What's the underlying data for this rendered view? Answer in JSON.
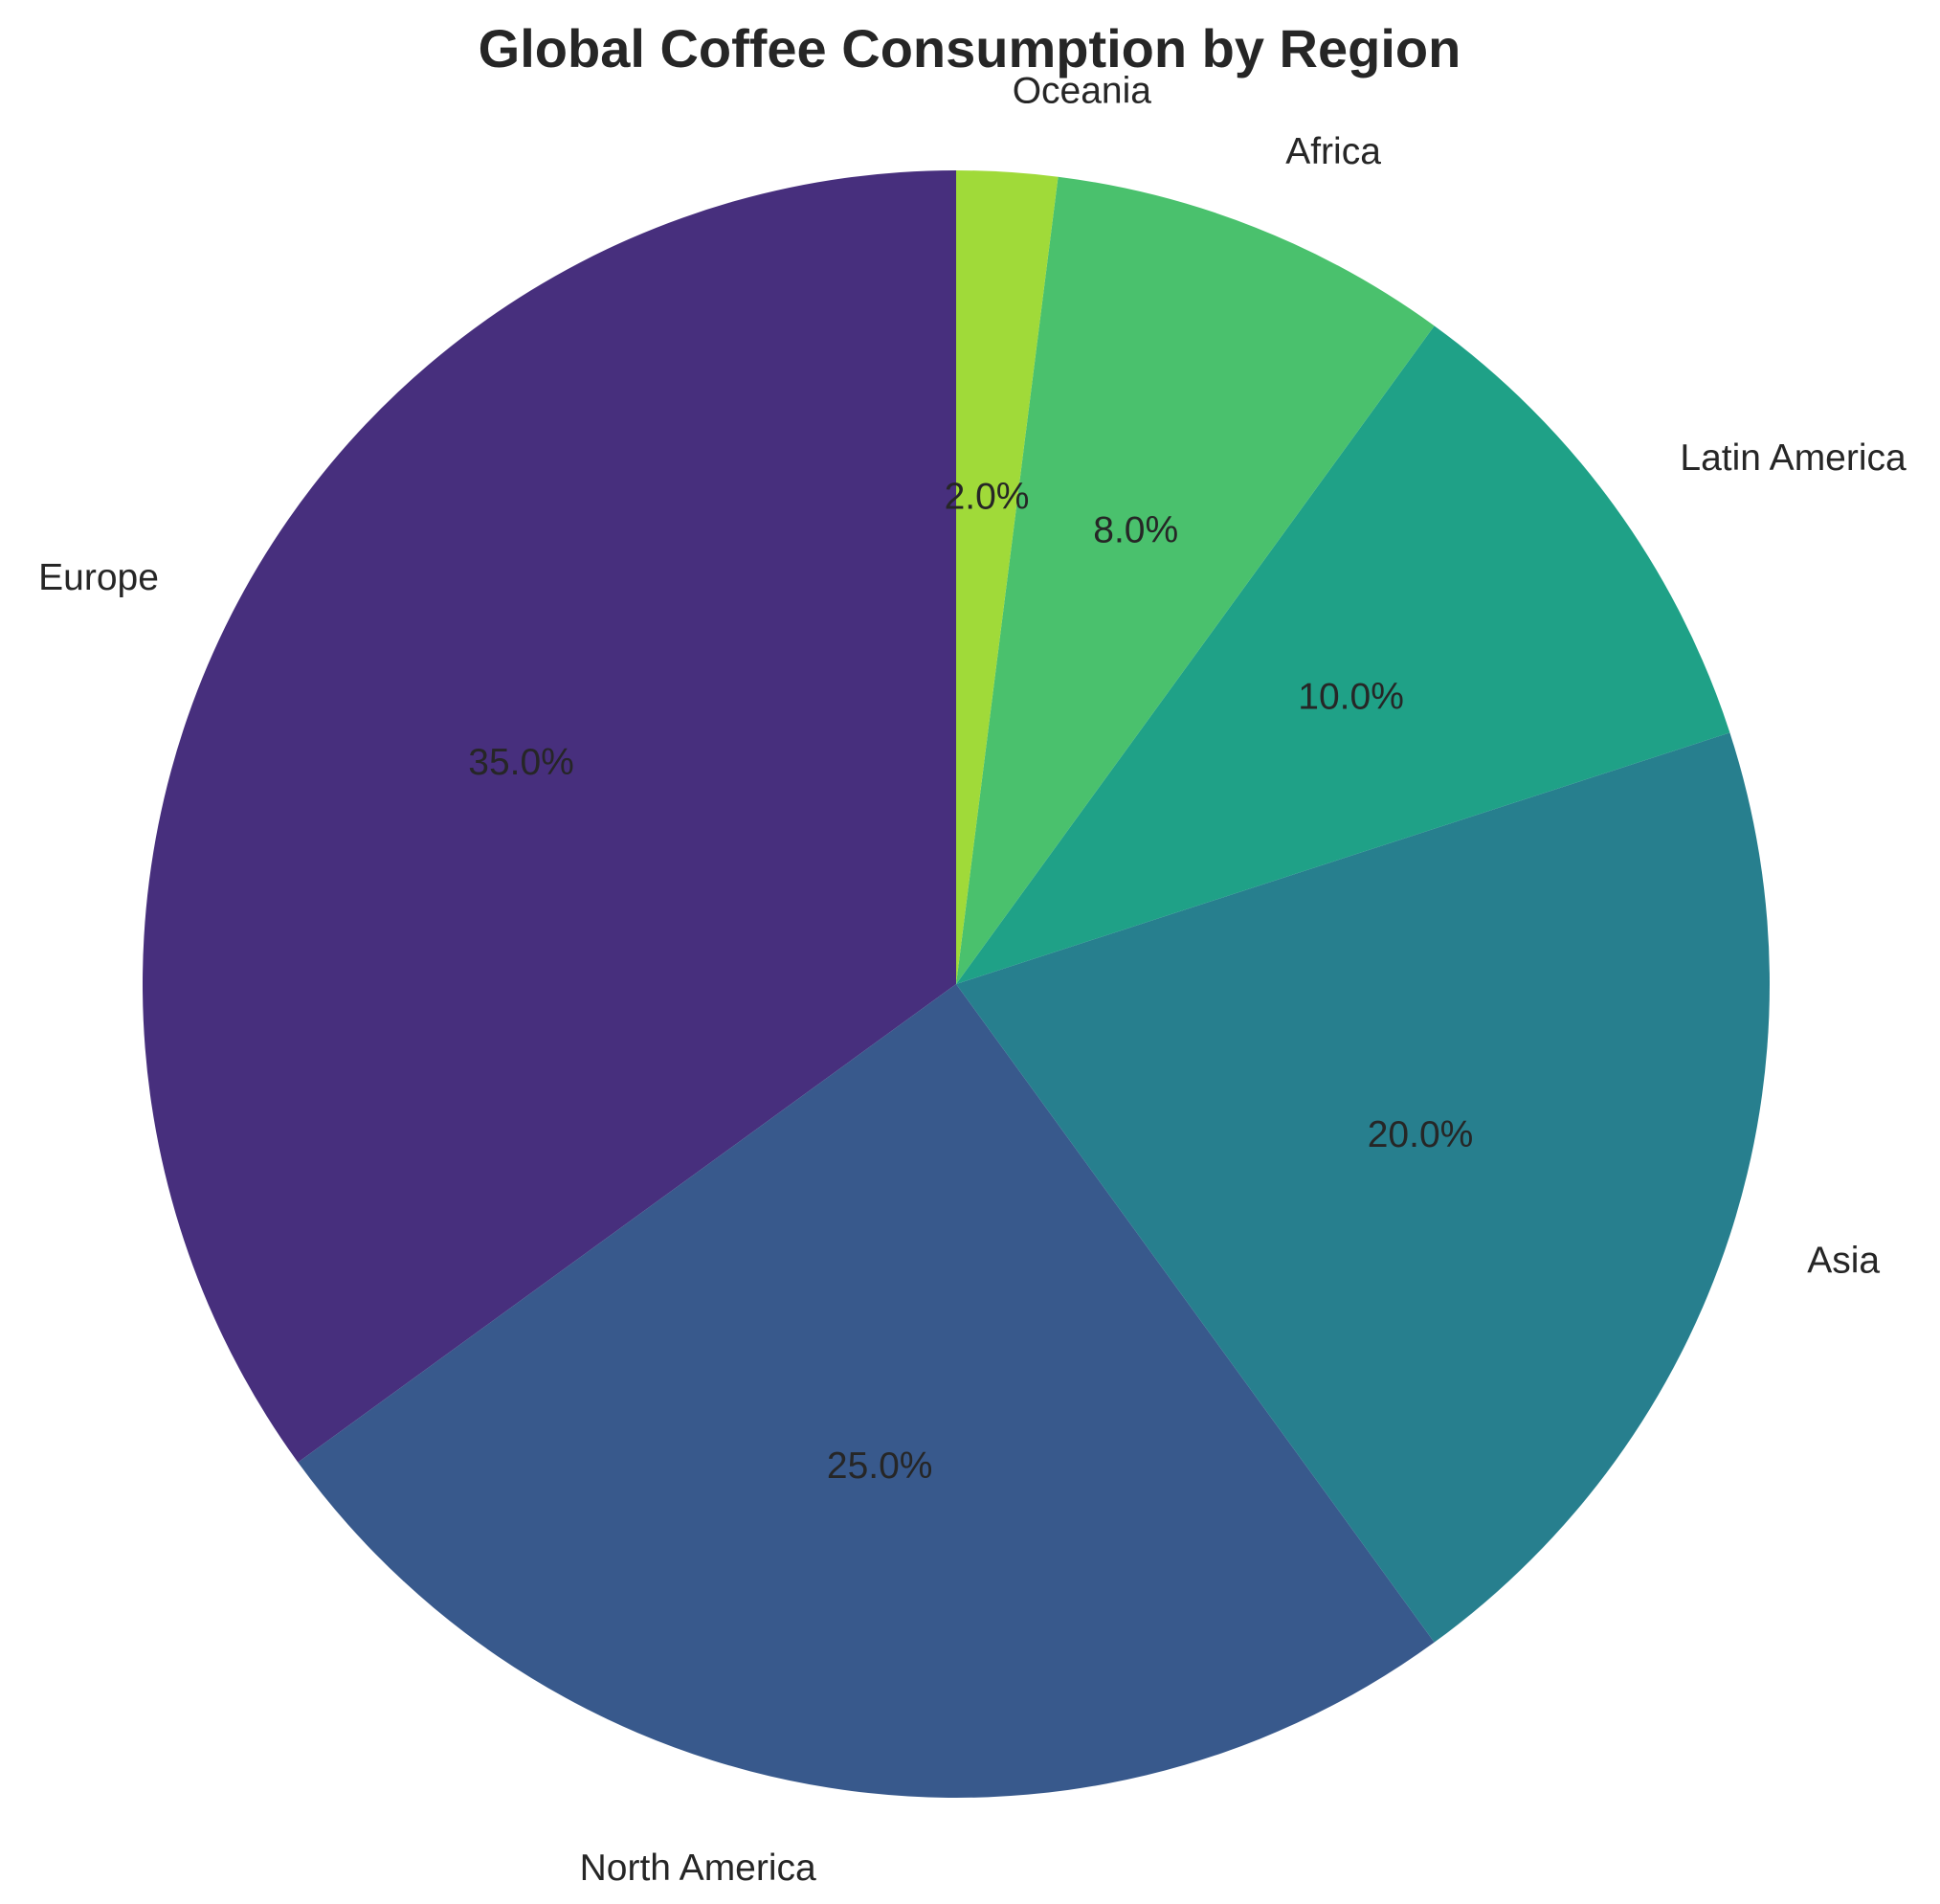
{
  "chart_data": {
    "type": "pie",
    "title": "Global Coffee Consumption by Region",
    "categories": [
      "Europe",
      "North America",
      "Asia",
      "Latin America",
      "Africa",
      "Oceania"
    ],
    "values": [
      35,
      25,
      20,
      10,
      8,
      2
    ],
    "value_labels": [
      "35.0%",
      "25.0%",
      "20.0%",
      "10.0%",
      "8.0%",
      "2.0%"
    ],
    "colors": [
      "#472f7d",
      "#38598c",
      "#277f8e",
      "#1fa187",
      "#4ac16d",
      "#a0da39"
    ],
    "start_angle_deg": 90,
    "direction": "counterclockwise",
    "legend": "none"
  }
}
